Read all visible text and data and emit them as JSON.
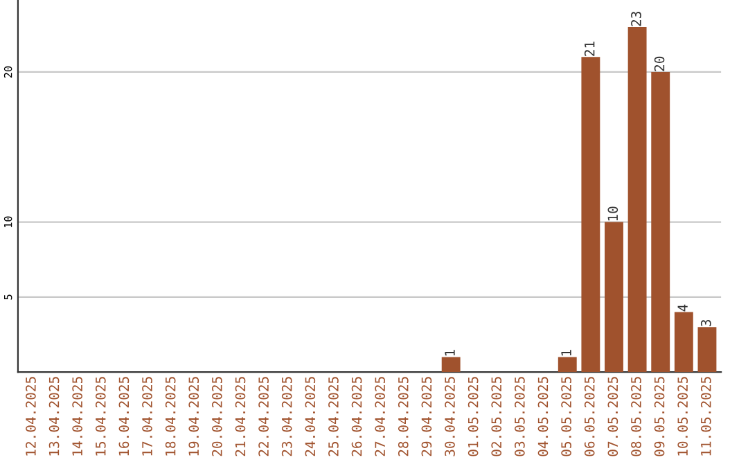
{
  "chart_data": {
    "type": "bar",
    "categories": [
      "12.04.2025",
      "13.04.2025",
      "14.04.2025",
      "15.04.2025",
      "16.04.2025",
      "17.04.2025",
      "18.04.2025",
      "19.04.2025",
      "20.04.2025",
      "21.04.2025",
      "22.04.2025",
      "23.04.2025",
      "24.04.2025",
      "25.04.2025",
      "26.04.2025",
      "27.04.2025",
      "28.04.2025",
      "29.04.2025",
      "30.04.2025",
      "01.05.2025",
      "02.05.2025",
      "03.05.2025",
      "04.05.2025",
      "05.05.2025",
      "06.05.2025",
      "07.05.2025",
      "08.05.2025",
      "09.05.2025",
      "10.05.2025",
      "11.05.2025"
    ],
    "values": [
      0,
      0,
      0,
      0,
      0,
      0,
      0,
      0,
      0,
      0,
      0,
      0,
      0,
      0,
      0,
      0,
      0,
      0,
      1,
      0,
      0,
      0,
      0,
      1,
      21,
      10,
      23,
      20,
      4,
      3
    ],
    "value_labels": [
      null,
      null,
      null,
      null,
      null,
      null,
      null,
      null,
      null,
      null,
      null,
      null,
      null,
      null,
      null,
      null,
      null,
      null,
      "1",
      null,
      null,
      null,
      null,
      "1",
      "21",
      "10",
      "23",
      "20",
      "4",
      "3"
    ],
    "color": "#a0522d",
    "ylim": [
      0,
      24.8
    ],
    "yticks": [
      5,
      10,
      20
    ],
    "grid": "y",
    "legend": false
  }
}
